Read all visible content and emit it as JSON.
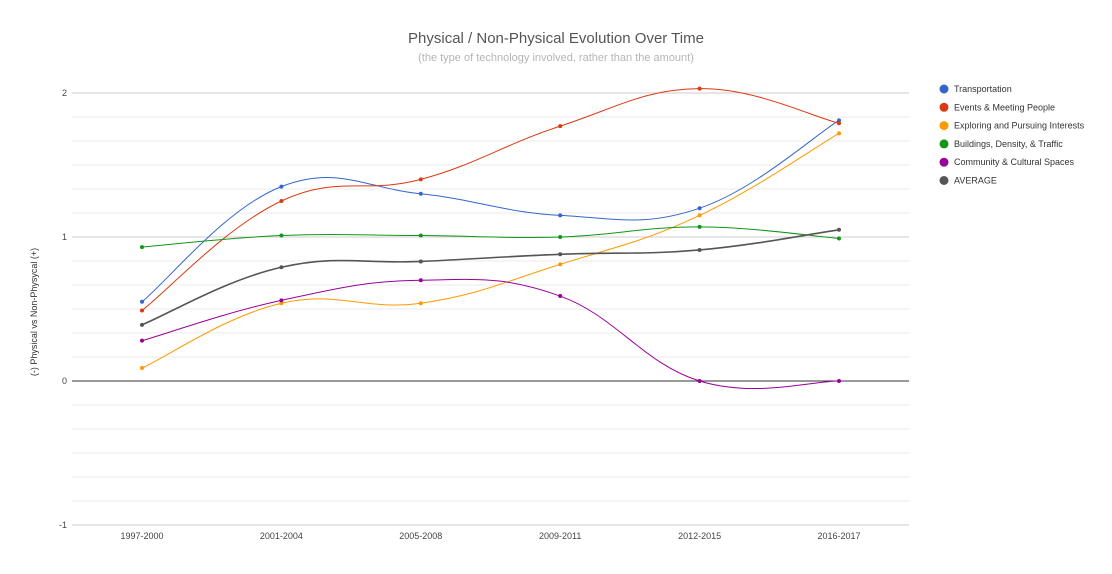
{
  "chart_data": {
    "type": "line",
    "title": "Physical / Non-Physical Evolution Over Time",
    "subtitle": "(the type of technology involved, rather than the amount)",
    "xlabel": "",
    "ylabel": "(-) Physical vs Non-Physycal (+)",
    "categories": [
      "1997-2000",
      "2001-2004",
      "2005-2008",
      "2009-2011",
      "2012-2015",
      "2016-2017"
    ],
    "ylim": [
      -1,
      2
    ],
    "yticks": [
      "-1",
      "0",
      "1",
      "2"
    ],
    "grid": true,
    "legend_position": "right",
    "series": [
      {
        "name": "Transportation",
        "color": "#3366cc",
        "values": [
          0.55,
          1.35,
          1.3,
          1.15,
          1.2,
          1.81
        ]
      },
      {
        "name": "Events & Meeting People",
        "color": "#dc3912",
        "values": [
          0.49,
          1.25,
          1.4,
          1.77,
          2.03,
          1.79
        ]
      },
      {
        "name": "Exploring and Pursuing Interests",
        "color": "#ff9900",
        "values": [
          0.09,
          0.54,
          0.54,
          0.81,
          1.15,
          1.72
        ]
      },
      {
        "name": "Buildings, Density, & Traffic",
        "color": "#109618",
        "values": [
          0.93,
          1.01,
          1.01,
          1.0,
          1.07,
          0.99
        ]
      },
      {
        "name": "Community & Cultural Spaces",
        "color": "#990099",
        "values": [
          0.28,
          0.56,
          0.7,
          0.59,
          0.0,
          0.0
        ]
      },
      {
        "name": "AVERAGE",
        "color": "#555555",
        "values": [
          0.39,
          0.79,
          0.83,
          0.88,
          0.91,
          1.05
        ]
      }
    ]
  }
}
